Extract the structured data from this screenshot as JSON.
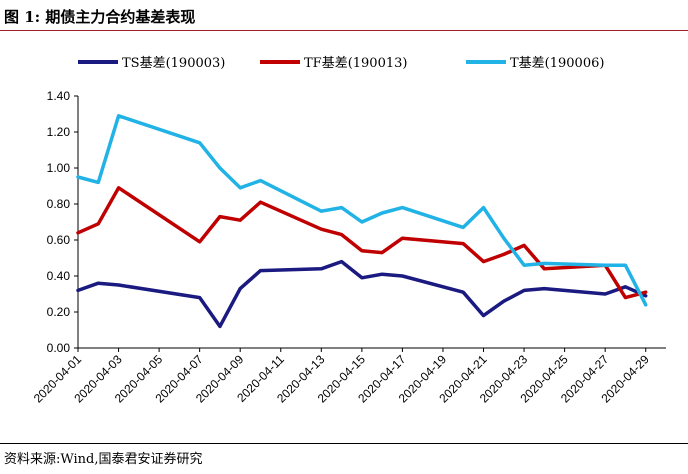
{
  "figure": {
    "title": "图 1:  期债主力合约基差表现",
    "source": "资料来源:Wind,国泰君安证券研究"
  },
  "chart_data": {
    "type": "line",
    "title": "",
    "xlabel": "",
    "ylabel": "",
    "ylim": [
      0,
      1.4
    ],
    "yticks": [
      "0.00",
      "0.20",
      "0.40",
      "0.60",
      "0.80",
      "1.00",
      "1.20",
      "1.40"
    ],
    "xlim": [
      "2020-04-01",
      "2020-04-30"
    ],
    "xticks": [
      "2020-04-01",
      "2020-04-03",
      "2020-04-05",
      "2020-04-07",
      "2020-04-09",
      "2020-04-11",
      "2020-04-13",
      "2020-04-15",
      "2020-04-17",
      "2020-04-19",
      "2020-04-21",
      "2020-04-23",
      "2020-04-25",
      "2020-04-27",
      "2020-04-29"
    ],
    "grid": false,
    "legend": "top",
    "series": [
      {
        "name": "TS基差(190003)",
        "color": "#1a1a80",
        "x": [
          "2020-04-01",
          "2020-04-02",
          "2020-04-03",
          "2020-04-07",
          "2020-04-08",
          "2020-04-09",
          "2020-04-10",
          "2020-04-13",
          "2020-04-14",
          "2020-04-15",
          "2020-04-16",
          "2020-04-17",
          "2020-04-20",
          "2020-04-21",
          "2020-04-22",
          "2020-04-23",
          "2020-04-24",
          "2020-04-27",
          "2020-04-28",
          "2020-04-29"
        ],
        "y": [
          0.32,
          0.36,
          0.35,
          0.28,
          0.12,
          0.33,
          0.43,
          0.44,
          0.48,
          0.39,
          0.41,
          0.4,
          0.31,
          0.18,
          0.26,
          0.32,
          0.33,
          0.3,
          0.34,
          0.29
        ]
      },
      {
        "name": "TF基差(190013)",
        "color": "#c00000",
        "x": [
          "2020-04-01",
          "2020-04-02",
          "2020-04-03",
          "2020-04-07",
          "2020-04-08",
          "2020-04-09",
          "2020-04-10",
          "2020-04-13",
          "2020-04-14",
          "2020-04-15",
          "2020-04-16",
          "2020-04-17",
          "2020-04-20",
          "2020-04-21",
          "2020-04-22",
          "2020-04-23",
          "2020-04-24",
          "2020-04-27",
          "2020-04-28",
          "2020-04-29"
        ],
        "y": [
          0.64,
          0.69,
          0.89,
          0.59,
          0.73,
          0.71,
          0.81,
          0.66,
          0.63,
          0.54,
          0.53,
          0.61,
          0.58,
          0.48,
          0.52,
          0.57,
          0.44,
          0.46,
          0.28,
          0.31
        ]
      },
      {
        "name": "T基差(190006)",
        "color": "#21b2e6",
        "x": [
          "2020-04-01",
          "2020-04-02",
          "2020-04-03",
          "2020-04-07",
          "2020-04-08",
          "2020-04-09",
          "2020-04-10",
          "2020-04-13",
          "2020-04-14",
          "2020-04-15",
          "2020-04-16",
          "2020-04-17",
          "2020-04-20",
          "2020-04-21",
          "2020-04-22",
          "2020-04-23",
          "2020-04-24",
          "2020-04-27",
          "2020-04-28",
          "2020-04-29"
        ],
        "y": [
          0.95,
          0.92,
          1.29,
          1.14,
          1.0,
          0.89,
          0.93,
          0.76,
          0.78,
          0.7,
          0.75,
          0.78,
          0.67,
          0.78,
          0.61,
          0.46,
          0.47,
          0.46,
          0.46,
          0.24
        ]
      }
    ]
  }
}
